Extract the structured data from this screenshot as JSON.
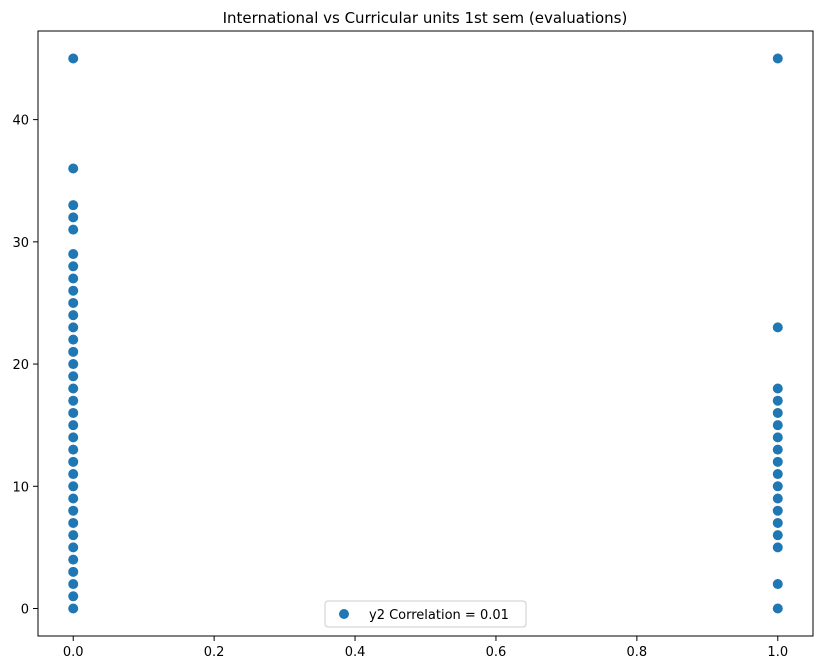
{
  "chart_data": {
    "type": "scatter",
    "title": "International vs Curricular units 1st sem (evaluations)",
    "xlabel": "",
    "ylabel": "",
    "xlim": [
      -0.05,
      1.05
    ],
    "ylim": [
      -2.25,
      47.25
    ],
    "xticks": [
      0.0,
      0.2,
      0.4,
      0.6,
      0.8,
      1.0
    ],
    "xtick_labels": [
      "0.0",
      "0.2",
      "0.4",
      "0.6",
      "0.8",
      "1.0"
    ],
    "yticks": [
      0,
      10,
      20,
      30,
      40
    ],
    "ytick_labels": [
      "0",
      "10",
      "20",
      "30",
      "40"
    ],
    "grid": false,
    "legend_position": "bottom-center",
    "series": [
      {
        "name": "y2 Correlation = 0.01",
        "color": "#1f77b4",
        "points": [
          [
            0,
            0
          ],
          [
            0,
            1
          ],
          [
            0,
            2
          ],
          [
            0,
            3
          ],
          [
            0,
            4
          ],
          [
            0,
            5
          ],
          [
            0,
            6
          ],
          [
            0,
            7
          ],
          [
            0,
            8
          ],
          [
            0,
            9
          ],
          [
            0,
            10
          ],
          [
            0,
            11
          ],
          [
            0,
            12
          ],
          [
            0,
            13
          ],
          [
            0,
            14
          ],
          [
            0,
            15
          ],
          [
            0,
            16
          ],
          [
            0,
            17
          ],
          [
            0,
            18
          ],
          [
            0,
            19
          ],
          [
            0,
            20
          ],
          [
            0,
            21
          ],
          [
            0,
            22
          ],
          [
            0,
            23
          ],
          [
            0,
            24
          ],
          [
            0,
            25
          ],
          [
            0,
            26
          ],
          [
            0,
            27
          ],
          [
            0,
            28
          ],
          [
            0,
            29
          ],
          [
            0,
            31
          ],
          [
            0,
            32
          ],
          [
            0,
            33
          ],
          [
            0,
            36
          ],
          [
            0,
            45
          ],
          [
            1,
            0
          ],
          [
            1,
            2
          ],
          [
            1,
            5
          ],
          [
            1,
            6
          ],
          [
            1,
            7
          ],
          [
            1,
            8
          ],
          [
            1,
            9
          ],
          [
            1,
            10
          ],
          [
            1,
            11
          ],
          [
            1,
            12
          ],
          [
            1,
            13
          ],
          [
            1,
            14
          ],
          [
            1,
            15
          ],
          [
            1,
            16
          ],
          [
            1,
            17
          ],
          [
            1,
            18
          ],
          [
            1,
            23
          ],
          [
            1,
            45
          ]
        ]
      }
    ]
  }
}
